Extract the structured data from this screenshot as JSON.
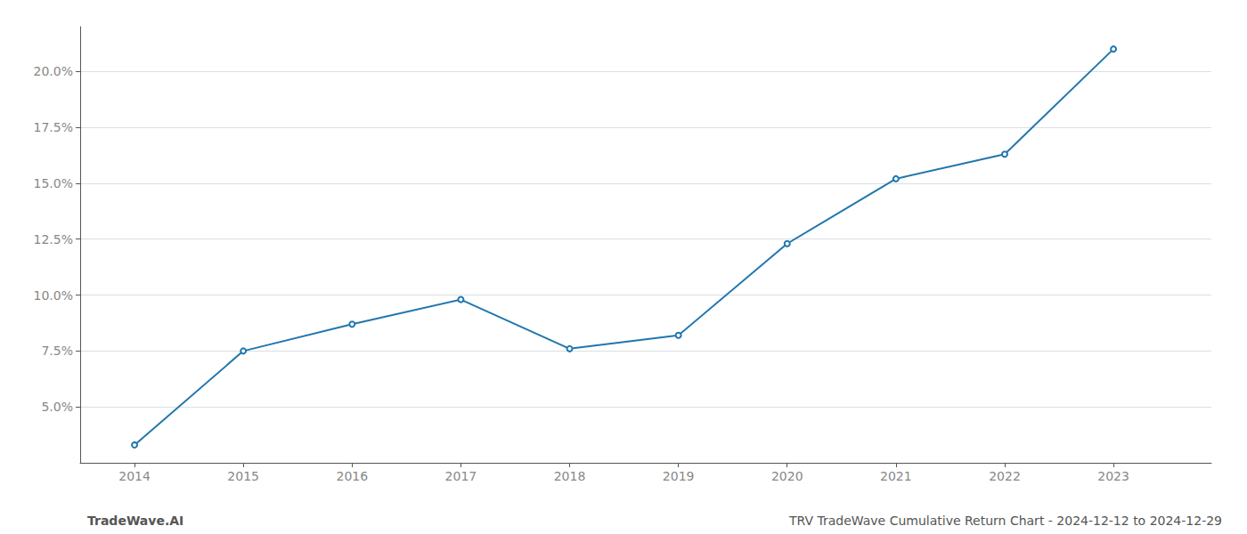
{
  "chart_data": {
    "type": "line",
    "x": [
      2014,
      2015,
      2016,
      2017,
      2018,
      2019,
      2020,
      2021,
      2022,
      2023
    ],
    "values": [
      3.3,
      7.5,
      8.7,
      9.8,
      7.6,
      8.2,
      12.3,
      15.2,
      16.3,
      21.0
    ],
    "color": "#2176ae",
    "xlim": [
      2013.5,
      2023.9
    ],
    "xticks": [
      2014,
      2015,
      2016,
      2017,
      2018,
      2019,
      2020,
      2021,
      2022,
      2023
    ],
    "ylim": [
      2.5,
      22.0
    ],
    "yticks": [
      {
        "value": 5.0,
        "label": "5.0%"
      },
      {
        "value": 7.5,
        "label": "7.5%"
      },
      {
        "value": 10.0,
        "label": "10.0%"
      },
      {
        "value": 12.5,
        "label": "12.5%"
      },
      {
        "value": 15.0,
        "label": "15.0%"
      },
      {
        "value": 17.5,
        "label": "17.5%"
      },
      {
        "value": 20.0,
        "label": "20.0%"
      }
    ],
    "grid": true,
    "annotations": [
      "TradeWave.AI",
      "TRV TradeWave Cumulative Return Chart - 2024-12-12 to 2024-12-29"
    ]
  }
}
